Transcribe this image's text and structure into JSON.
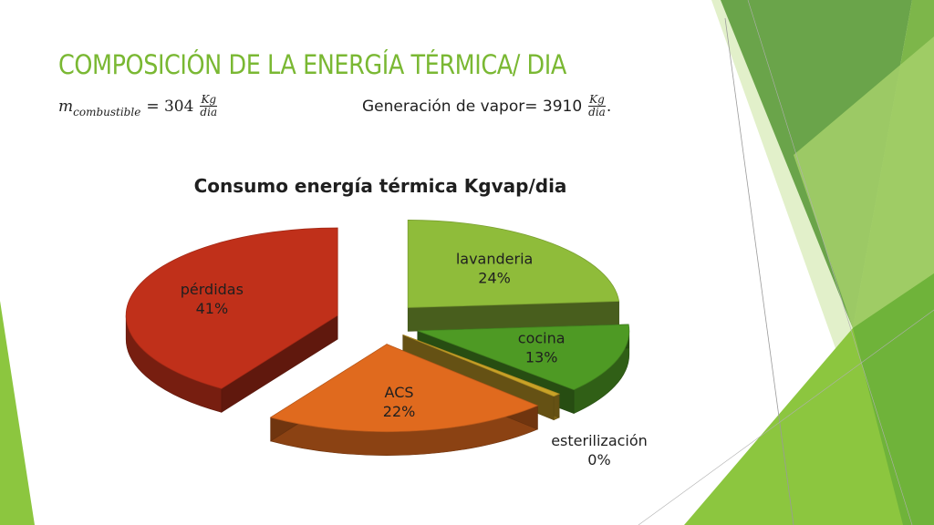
{
  "slide": {
    "title": "COMPOSICIÓN DE LA ENERGÍA TÉRMICA/ DIA",
    "fuel": {
      "var": "m",
      "sub": "combustible",
      "eq": "= 304",
      "num": "Kg",
      "den": "dia"
    },
    "steam": {
      "text": "Generación de vapor= 3910",
      "num": "Kg",
      "den": "dia",
      "suffix": "."
    }
  },
  "colors": {
    "title": "#7ab833",
    "pérdidas": "#c0301a",
    "lavanderia": "#8fbc3a",
    "cocina": "#4e9a24",
    "ACS": "#e06a1e",
    "esterilización": "#c9a227"
  },
  "chart_data": {
    "type": "pie",
    "style": "3d-exploded",
    "title": "Consumo energía térmica Kgvap/dia",
    "slices": [
      {
        "label": "lavanderia",
        "percent_label": "24%",
        "value": 24
      },
      {
        "label": "cocina",
        "percent_label": "13%",
        "value": 13
      },
      {
        "label": "esterilización",
        "percent_label": "0%",
        "value": 0.6
      },
      {
        "label": "ACS",
        "percent_label": "22%",
        "value": 22
      },
      {
        "label": "pérdidas",
        "percent_label": "41%",
        "value": 41
      }
    ]
  }
}
